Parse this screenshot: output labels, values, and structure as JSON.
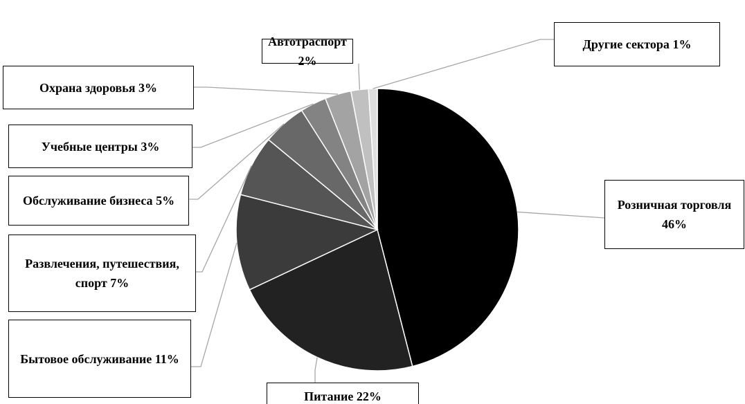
{
  "chart_data": {
    "type": "pie",
    "categories": [
      "Розничная торговля",
      "Питание",
      "Бытовое обслуживание",
      "Развлечения, путешествия, спорт",
      "Обслуживание бизнеса",
      "Учебные центры",
      "Охрана здоровья",
      "Автотраспорт",
      "Другие сектора"
    ],
    "values": [
      46,
      22,
      11,
      7,
      5,
      3,
      3,
      2,
      1
    ],
    "value_labels": [
      "46%",
      "22%",
      "11%",
      "7%",
      "5%",
      "3%",
      "3%",
      "2%",
      "1%"
    ],
    "colors": [
      "#000000",
      "#222222",
      "#3b3b3b",
      "#555555",
      "#686868",
      "#838383",
      "#a3a3a3",
      "#c0c0c0",
      "#dedede"
    ]
  }
}
